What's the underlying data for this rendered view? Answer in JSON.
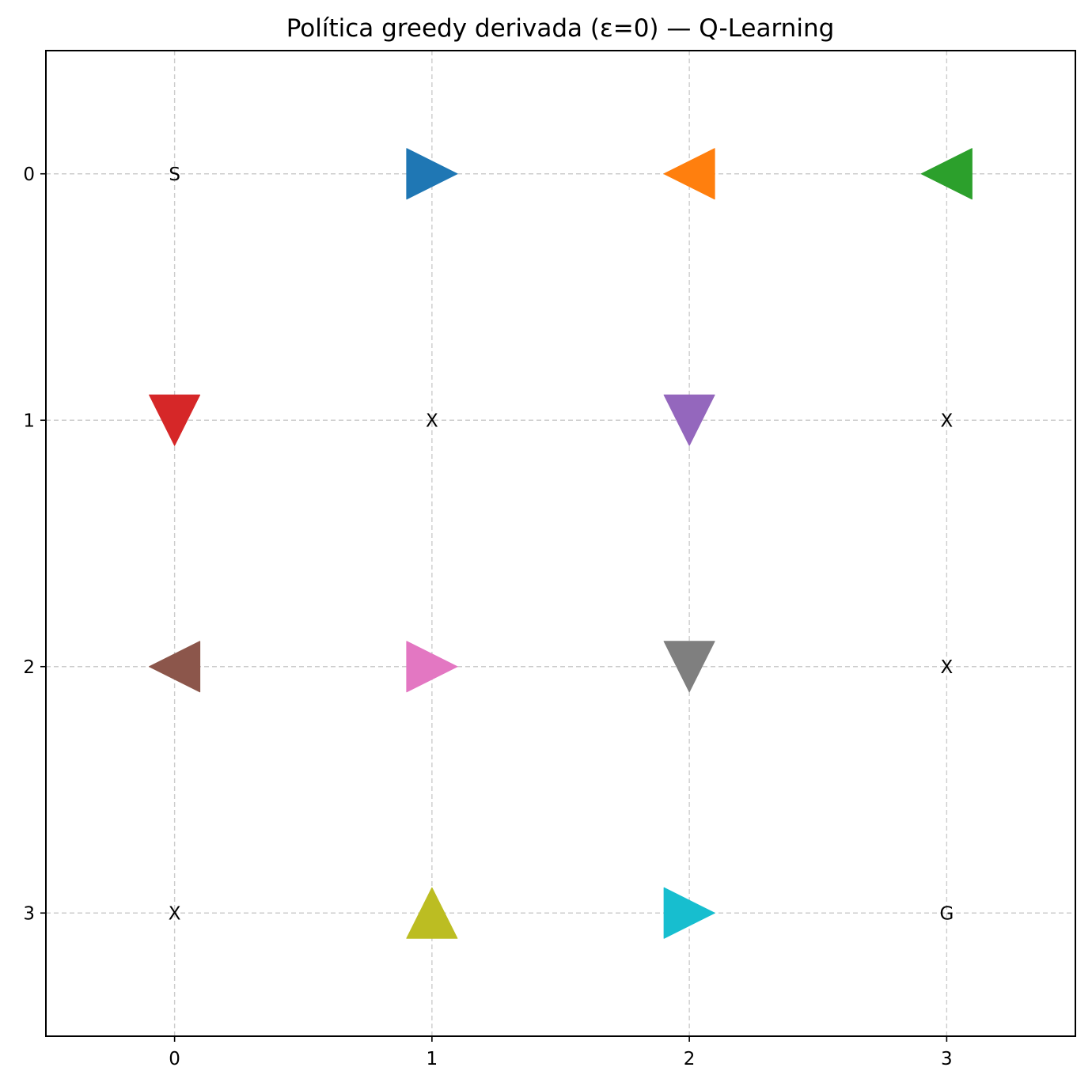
{
  "chart_data": {
    "type": "scatter",
    "title": "Política greedy derivada (ε=0) — Q-Learning",
    "xlabel": "",
    "ylabel": "",
    "xlim": [
      -0.5,
      3.5
    ],
    "ylim": [
      3.5,
      -0.5
    ],
    "y_inverted": true,
    "x_ticks": [
      "0",
      "1",
      "2",
      "3"
    ],
    "y_ticks": [
      "0",
      "1",
      "2",
      "3"
    ],
    "grid": true,
    "grid_style": "dashed",
    "cell_labels": [
      {
        "row": 0,
        "col": 0,
        "text": "S"
      },
      {
        "row": 1,
        "col": 1,
        "text": "X"
      },
      {
        "row": 1,
        "col": 3,
        "text": "X"
      },
      {
        "row": 2,
        "col": 3,
        "text": "X"
      },
      {
        "row": 3,
        "col": 0,
        "text": "X"
      },
      {
        "row": 3,
        "col": 3,
        "text": "G"
      }
    ],
    "arrows": [
      {
        "row": 0,
        "col": 1,
        "direction": "right",
        "color": "#1f77b4"
      },
      {
        "row": 0,
        "col": 2,
        "direction": "left",
        "color": "#ff7f0e"
      },
      {
        "row": 0,
        "col": 3,
        "direction": "left",
        "color": "#2ca02c"
      },
      {
        "row": 1,
        "col": 0,
        "direction": "down",
        "color": "#d62728"
      },
      {
        "row": 1,
        "col": 2,
        "direction": "down",
        "color": "#9467bd"
      },
      {
        "row": 2,
        "col": 0,
        "direction": "left",
        "color": "#8c564b"
      },
      {
        "row": 2,
        "col": 1,
        "direction": "right",
        "color": "#e377c2"
      },
      {
        "row": 2,
        "col": 2,
        "direction": "down",
        "color": "#7f7f7f"
      },
      {
        "row": 3,
        "col": 1,
        "direction": "up",
        "color": "#bcbd22"
      },
      {
        "row": 3,
        "col": 2,
        "direction": "right",
        "color": "#17becf"
      }
    ]
  }
}
